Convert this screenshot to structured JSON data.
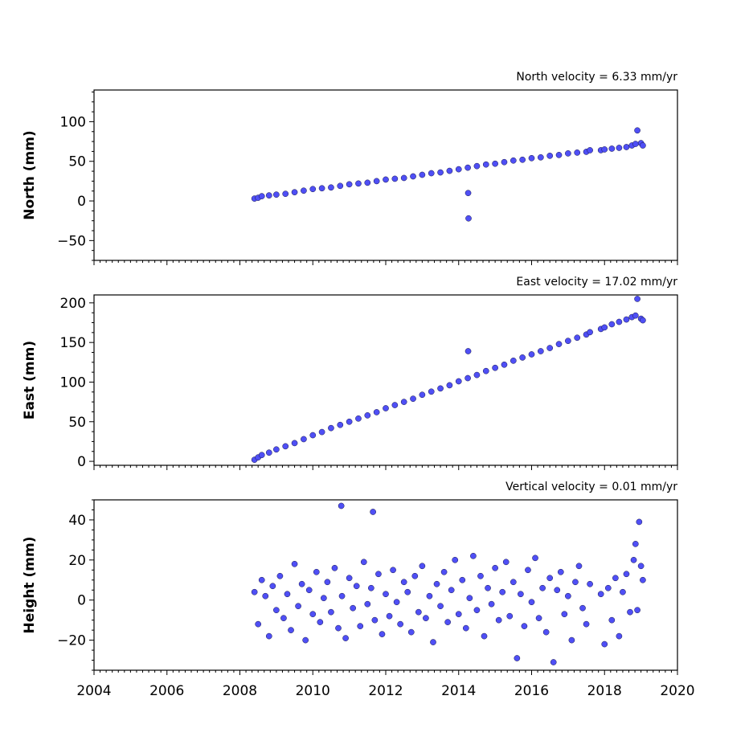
{
  "chart_data": [
    {
      "type": "scatter",
      "id": "north",
      "ylabel": "North (mm)",
      "annotation": "North velocity = 6.33 mm/yr",
      "xlim": [
        2004,
        2020
      ],
      "ylim": [
        -75,
        140
      ],
      "yticks": [
        -50,
        0,
        50,
        100
      ],
      "series": [
        {
          "x": [
            2008.4,
            2008.5,
            2008.6,
            2008.8,
            2009.0,
            2009.25,
            2009.5,
            2009.75,
            2010.0,
            2010.25,
            2010.5,
            2010.75,
            2011.0,
            2011.25,
            2011.5,
            2011.75,
            2012.0,
            2012.25,
            2012.5,
            2012.75,
            2013.0,
            2013.25,
            2013.5,
            2013.75,
            2014.0,
            2014.25,
            2014.26,
            2014.27,
            2014.5,
            2014.75,
            2015.0,
            2015.25,
            2015.5,
            2015.75,
            2016.0,
            2016.25,
            2016.5,
            2016.75,
            2017.0,
            2017.25,
            2017.5,
            2017.6,
            2017.9,
            2018.0,
            2018.2,
            2018.4,
            2018.6,
            2018.75,
            2018.85,
            2018.9,
            2019.0,
            2019.05
          ],
          "y": [
            3,
            4,
            6,
            7,
            8,
            9,
            11,
            13,
            15,
            16,
            17,
            19,
            21,
            22,
            23,
            25,
            27,
            28,
            29,
            31,
            33,
            35,
            36,
            38,
            40,
            42,
            10,
            -22,
            44,
            46,
            47,
            49,
            51,
            52,
            54,
            55,
            57,
            58,
            60,
            61,
            62,
            64,
            64,
            65,
            66,
            67,
            68,
            70,
            72,
            89,
            73,
            70
          ]
        }
      ]
    },
    {
      "type": "scatter",
      "id": "east",
      "ylabel": "East (mm)",
      "annotation": "East velocity = 17.02 mm/yr",
      "xlim": [
        2004,
        2020
      ],
      "ylim": [
        -5,
        210
      ],
      "yticks": [
        0,
        50,
        100,
        150,
        200
      ],
      "series": [
        {
          "x": [
            2008.4,
            2008.5,
            2008.6,
            2008.8,
            2009.0,
            2009.25,
            2009.5,
            2009.75,
            2010.0,
            2010.25,
            2010.5,
            2010.75,
            2011.0,
            2011.25,
            2011.5,
            2011.75,
            2012.0,
            2012.25,
            2012.5,
            2012.75,
            2013.0,
            2013.25,
            2013.5,
            2013.75,
            2014.0,
            2014.25,
            2014.26,
            2014.5,
            2014.75,
            2015.0,
            2015.25,
            2015.5,
            2015.75,
            2016.0,
            2016.25,
            2016.5,
            2016.75,
            2017.0,
            2017.25,
            2017.5,
            2017.6,
            2017.9,
            2018.0,
            2018.2,
            2018.4,
            2018.6,
            2018.75,
            2018.85,
            2018.9,
            2019.0,
            2019.05
          ],
          "y": [
            2,
            5,
            8,
            11,
            15,
            19,
            23,
            28,
            33,
            37,
            42,
            46,
            50,
            54,
            58,
            62,
            67,
            71,
            75,
            79,
            84,
            88,
            92,
            96,
            101,
            105,
            139,
            109,
            114,
            118,
            122,
            127,
            131,
            135,
            139,
            143,
            148,
            152,
            156,
            160,
            163,
            167,
            169,
            173,
            176,
            179,
            182,
            184,
            205,
            180,
            178
          ]
        }
      ]
    },
    {
      "type": "scatter",
      "id": "height",
      "ylabel": "Height (mm)",
      "annotation": "Vertical velocity = 0.01 mm/yr",
      "xlim": [
        2004,
        2020
      ],
      "ylim": [
        -35,
        50
      ],
      "yticks": [
        -20,
        0,
        20,
        40
      ],
      "xticks": [
        2004,
        2006,
        2008,
        2010,
        2012,
        2014,
        2016,
        2018,
        2020
      ],
      "series": [
        {
          "x": [
            2008.4,
            2008.5,
            2008.6,
            2008.7,
            2008.8,
            2008.9,
            2009.0,
            2009.1,
            2009.2,
            2009.3,
            2009.4,
            2009.5,
            2009.6,
            2009.7,
            2009.8,
            2009.9,
            2010.0,
            2010.1,
            2010.2,
            2010.3,
            2010.4,
            2010.5,
            2010.6,
            2010.7,
            2010.78,
            2010.8,
            2010.9,
            2011.0,
            2011.1,
            2011.2,
            2011.3,
            2011.4,
            2011.5,
            2011.6,
            2011.65,
            2011.7,
            2011.8,
            2011.9,
            2012.0,
            2012.1,
            2012.2,
            2012.3,
            2012.4,
            2012.5,
            2012.6,
            2012.7,
            2012.8,
            2012.9,
            2013.0,
            2013.1,
            2013.2,
            2013.3,
            2013.4,
            2013.5,
            2013.6,
            2013.7,
            2013.8,
            2013.9,
            2014.0,
            2014.1,
            2014.2,
            2014.3,
            2014.4,
            2014.5,
            2014.6,
            2014.7,
            2014.8,
            2014.9,
            2015.0,
            2015.1,
            2015.2,
            2015.3,
            2015.4,
            2015.5,
            2015.6,
            2015.7,
            2015.8,
            2015.9,
            2016.0,
            2016.1,
            2016.2,
            2016.3,
            2016.4,
            2016.5,
            2016.6,
            2016.7,
            2016.8,
            2016.9,
            2017.0,
            2017.1,
            2017.2,
            2017.3,
            2017.4,
            2017.5,
            2017.6,
            2017.9,
            2018.0,
            2018.1,
            2018.2,
            2018.3,
            2018.4,
            2018.5,
            2018.6,
            2018.7,
            2018.8,
            2018.85,
            2018.9,
            2018.95,
            2019.0,
            2019.05
          ],
          "y": [
            4,
            -12,
            10,
            2,
            -18,
            7,
            -5,
            12,
            -9,
            3,
            -15,
            18,
            -3,
            8,
            -20,
            5,
            -7,
            14,
            -11,
            1,
            9,
            -6,
            16,
            -14,
            47,
            2,
            -19,
            11,
            -4,
            7,
            -13,
            19,
            -2,
            6,
            44,
            -10,
            13,
            -17,
            3,
            -8,
            15,
            -1,
            -12,
            9,
            4,
            -16,
            12,
            -6,
            17,
            -9,
            2,
            -21,
            8,
            -3,
            14,
            -11,
            5,
            20,
            -7,
            10,
            -14,
            1,
            22,
            -5,
            12,
            -18,
            6,
            -2,
            16,
            -10,
            4,
            19,
            -8,
            9,
            -29,
            3,
            -13,
            15,
            -1,
            21,
            -9,
            6,
            -16,
            11,
            -31,
            5,
            14,
            -7,
            2,
            -20,
            9,
            17,
            -4,
            -12,
            8,
            3,
            -22,
            6,
            -10,
            11,
            -18,
            4,
            13,
            -6,
            20,
            28,
            -5,
            39,
            17,
            10
          ]
        }
      ]
    }
  ]
}
